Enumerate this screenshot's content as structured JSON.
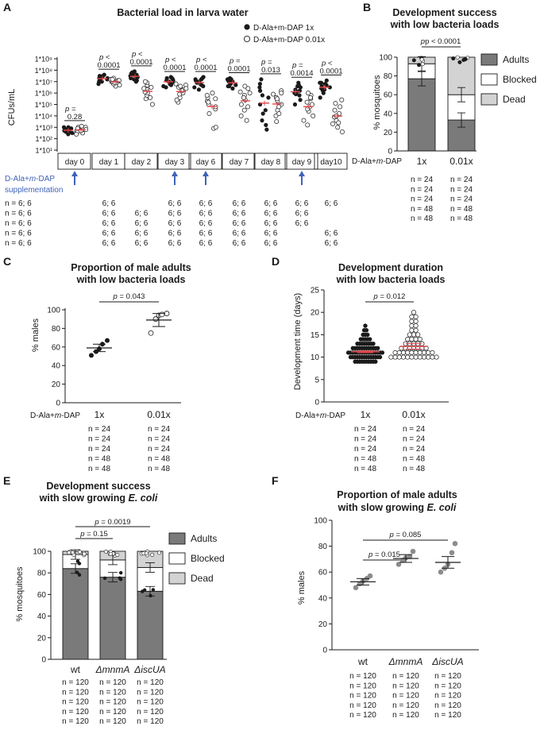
{
  "panels": {
    "A": "A",
    "B": "B",
    "C": "C",
    "D": "D",
    "E": "E",
    "F": "F"
  },
  "colors": {
    "dark": "#1a1a1a",
    "mid_gray": "#7a7a7a",
    "light_gray": "#d3d3d3",
    "red": "#e0454a",
    "blue": "#3f63b8",
    "point_gray": "#8c8c8c"
  },
  "panelA": {
    "title": "Bacterial load in larva water",
    "ylabel": "CFUs/mL",
    "yticks": [
      "1*10⁹",
      "1*10⁸",
      "1*10⁷",
      "1*10⁶",
      "1*10⁵",
      "1*10⁴",
      "1*10³",
      "1*10²",
      "1*10¹"
    ],
    "legend": [
      "D-Ala+m-DAP 1x",
      "D-Ala+m-DAP 0.01x"
    ],
    "supplementation": "D-Ala+m-DAP supplementation",
    "p_prefix": "p",
    "n_rows": [
      [
        "n = 6; 6",
        "6; 6",
        "",
        "6; 6",
        "6; 6",
        "6; 6",
        "6; 6",
        "6; 6",
        "6; 6"
      ],
      [
        "n = 6; 6",
        "6; 6",
        "6; 6",
        "6; 6",
        "6; 6",
        "6; 6",
        "6; 6",
        "6; 6",
        ""
      ],
      [
        "n = 6; 6",
        "6; 6",
        "6; 6",
        "6; 6",
        "6; 6",
        "6; 6",
        "6; 6",
        "6; 6",
        ""
      ],
      [
        "n = 6; 6",
        "6; 6",
        "6; 6",
        "6; 6",
        "6; 6",
        "6; 6",
        "6; 6",
        "",
        "6; 6"
      ],
      [
        "n = 6; 6",
        "6; 6",
        "6; 6",
        "6; 6",
        "6; 6",
        "6; 6",
        "6; 6",
        "",
        "6; 6"
      ]
    ]
  },
  "panelB": {
    "title1": "Development success",
    "title2": "with low bacteria loads",
    "ylabel": "% mosquitoes",
    "p": "p < 0.0001",
    "xlabel_row": "D-Ala+m-DAP",
    "legend": [
      "Adults",
      "Blocked",
      "Dead"
    ],
    "n": [
      "n = 24",
      "n = 24",
      "n = 24",
      "n = 48",
      "n = 48"
    ]
  },
  "panelC": {
    "title1": "Proportion of male adults",
    "title2": "with low bacteria loads",
    "ylabel": "% males",
    "p": "p = 0.043",
    "xlabel_row": "D-Ala+m-DAP",
    "n": [
      "n = 24",
      "n = 24",
      "n = 24",
      "n = 48",
      "n = 48"
    ]
  },
  "panelD": {
    "title1": "Development duration",
    "title2": "with low bacteria loads",
    "ylabel": "Development time (days)",
    "p": "p = 0.012",
    "xlabel_row": "D-Ala+m-DAP",
    "n": [
      "n = 24",
      "n = 24",
      "n = 24",
      "n = 48",
      "n = 48"
    ]
  },
  "panelE": {
    "title1": "Development success",
    "title2a": "with slow growing ",
    "title2b": "E. coli",
    "ylabel": "% mosquitoes",
    "p1": "p = 0.15",
    "p2": "p = 0.0019",
    "legend": [
      "Adults",
      "Blocked",
      "Dead"
    ],
    "n": [
      "n = 120",
      "n = 120",
      "n = 120",
      "n = 120",
      "n = 120"
    ]
  },
  "panelF": {
    "title1": "Proportion of male adults",
    "title2a": "with slow growing ",
    "title2b": "E. coli",
    "ylabel": "% males",
    "p1": "p = 0.015",
    "p2": "p = 0.085",
    "n": [
      "n = 120",
      "n = 120",
      "n = 120",
      "n = 120",
      "n = 120"
    ]
  },
  "chart_data": [
    {
      "panel": "A",
      "type": "scatter",
      "title": "Bacterial load in larva water",
      "ylabel": "CFUs/mL",
      "yscale": "log",
      "ylim": [
        10,
        1000000000
      ],
      "categories": [
        "day 0",
        "day 1",
        "day 2",
        "day 3",
        "day 6",
        "day 7",
        "day 8",
        "day 9",
        "day10"
      ],
      "series": [
        {
          "name": "D-Ala+m-DAP 1x",
          "log10_values": [
            [
              2.4,
              2.6,
              2.7,
              2.8,
              2.9,
              3.0,
              3.0,
              2.5,
              2.7,
              2.8,
              2.6,
              2.9
            ],
            [
              6.8,
              7.0,
              7.2,
              7.3,
              7.4,
              7.5,
              7.6,
              7.2,
              7.0,
              7.3,
              7.4,
              7.5
            ],
            [
              7.0,
              7.2,
              7.4,
              7.6,
              7.7,
              7.8,
              7.9,
              7.3,
              7.5,
              7.6,
              7.1,
              7.4
            ],
            [
              6.5,
              6.7,
              6.9,
              7.1,
              7.2,
              7.3,
              7.4,
              6.8,
              7.0,
              6.6,
              7.1,
              7.3
            ],
            [
              6.3,
              6.6,
              6.8,
              7.0,
              7.2,
              7.3,
              7.4,
              6.9,
              6.5,
              7.1,
              6.7,
              7.2
            ],
            [
              6.4,
              6.6,
              6.8,
              7.0,
              7.1,
              7.2,
              7.3,
              6.9,
              6.7,
              7.0,
              6.6,
              7.2
            ],
            [
              2.8,
              3.2,
              3.6,
              4.2,
              5.0,
              5.6,
              6.2,
              6.8,
              7.2,
              5.8,
              6.5,
              4.5
            ],
            [
              5.0,
              5.4,
              5.8,
              6.0,
              6.3,
              6.6,
              6.9,
              6.2,
              5.9,
              6.5,
              6.1,
              6.7
            ],
            [
              5.6,
              6.0,
              6.3,
              6.5,
              6.7,
              6.9,
              7.1,
              6.4,
              6.6,
              6.8,
              6.2,
              6.9
            ]
          ]
        },
        {
          "name": "D-Ala+m-DAP 0.01x",
          "log10_values": [
            [
              2.5,
              2.7,
              2.9,
              3.0,
              2.8,
              2.6,
              3.1,
              2.7,
              2.9,
              2.4,
              3.0,
              2.8
            ],
            [
              6.6,
              6.9,
              7.0,
              7.1,
              7.3,
              6.8,
              7.2,
              6.7,
              7.0,
              7.1,
              6.9,
              7.2
            ],
            [
              5.0,
              5.5,
              5.8,
              6.0,
              6.3,
              6.5,
              6.7,
              6.9,
              7.0,
              6.1,
              5.6,
              6.4
            ],
            [
              5.2,
              5.6,
              6.0,
              6.3,
              6.5,
              6.7,
              6.8,
              5.9,
              6.2,
              6.6,
              5.4,
              6.4
            ],
            [
              2.9,
              3.0,
              4.2,
              4.6,
              5.0,
              5.3,
              5.6,
              5.8,
              6.0,
              5.5,
              4.8,
              5.2
            ],
            [
              3.6,
              4.0,
              4.5,
              5.0,
              5.4,
              5.8,
              6.1,
              6.4,
              6.6,
              4.8,
              5.6,
              6.0
            ],
            [
              3.5,
              4.0,
              4.5,
              5.0,
              5.3,
              5.6,
              5.9,
              6.2,
              4.8,
              5.5,
              6.0,
              4.2
            ],
            [
              3.2,
              3.6,
              4.0,
              4.4,
              4.8,
              5.2,
              5.5,
              5.8,
              6.0,
              4.6,
              5.0,
              5.6
            ],
            [
              2.6,
              3.0,
              3.3,
              3.6,
              3.9,
              4.2,
              4.5,
              4.8,
              5.1,
              5.4,
              3.4,
              4.0
            ]
          ]
        }
      ],
      "p_values": [
        "= 0.28",
        "< 0.0001",
        "< 0.0001",
        "< 0.0001",
        "< 0.0001",
        "= 0.0001",
        "= 0.013",
        "= 0.0014",
        "< 0.0001"
      ],
      "supplementation_days": [
        "day 0",
        "day 3",
        "day 6",
        "day 9"
      ]
    },
    {
      "panel": "B",
      "type": "bar",
      "stacked": true,
      "title": "Development success with low bacteria loads",
      "ylabel": "% mosquitoes",
      "categories": [
        "1x",
        "0.01x"
      ],
      "ylim": [
        0,
        100
      ],
      "series": [
        {
          "name": "Adults",
          "values": [
            77,
            33
          ]
        },
        {
          "name": "Blocked",
          "values": [
            16,
            27
          ]
        },
        {
          "name": "Dead",
          "values": [
            7,
            40
          ]
        }
      ]
    },
    {
      "panel": "C",
      "type": "scatter",
      "title": "Proportion of male adults with low bacteria loads",
      "ylabel": "% males",
      "categories": [
        "1x",
        "0.01x"
      ],
      "ylim": [
        0,
        100
      ],
      "means": [
        59,
        89
      ],
      "sem": [
        4,
        7
      ],
      "points": [
        [
          51,
          55,
          58,
          63,
          67
        ],
        [
          75,
          90,
          94,
          95,
          96
        ]
      ]
    },
    {
      "panel": "D",
      "type": "scatter",
      "title": "Development duration with low bacteria loads",
      "ylabel": "Development time (days)",
      "categories": [
        "1x",
        "0.01x"
      ],
      "ylim": [
        0,
        25
      ],
      "means": [
        11.2,
        12.4
      ],
      "sem": [
        0.2,
        0.6
      ],
      "points": [
        [
          9,
          9,
          9,
          9,
          9,
          9,
          9,
          9,
          9,
          9,
          10,
          10,
          10,
          10,
          10,
          10,
          10,
          10,
          10,
          10,
          10,
          10,
          10,
          10,
          11,
          11,
          11,
          11,
          11,
          11,
          11,
          11,
          11,
          11,
          11,
          11,
          11,
          11,
          11,
          11,
          12,
          12,
          12,
          12,
          12,
          12,
          12,
          12,
          12,
          12,
          12,
          12,
          13,
          13,
          13,
          13,
          13,
          13,
          13,
          13,
          14,
          14,
          14,
          14,
          14,
          15,
          15,
          15,
          16,
          16,
          17
        ],
        [
          10,
          10,
          10,
          10,
          10,
          10,
          10,
          10,
          10,
          10,
          10,
          10,
          11,
          11,
          11,
          11,
          11,
          11,
          11,
          11,
          11,
          11,
          12,
          12,
          12,
          12,
          12,
          12,
          12,
          13,
          13,
          13,
          13,
          13,
          14,
          14,
          14,
          14,
          15,
          15,
          15,
          16,
          16,
          17,
          17,
          18,
          18,
          19,
          19,
          20
        ]
      ]
    },
    {
      "panel": "E",
      "type": "bar",
      "stacked": true,
      "title": "Development success with slow growing E. coli",
      "ylabel": "% mosquitoes",
      "categories": [
        "wt",
        "ΔmnmA",
        "ΔiscUA"
      ],
      "ylim": [
        0,
        100
      ],
      "series": [
        {
          "name": "Adults",
          "values": [
            84,
            76,
            63
          ]
        },
        {
          "name": "Blocked",
          "values": [
            13,
            16,
            22
          ]
        },
        {
          "name": "Dead",
          "values": [
            3,
            8,
            15
          ]
        }
      ]
    },
    {
      "panel": "F",
      "type": "scatter",
      "title": "Proportion of male adults with slow growing E. coli",
      "ylabel": "% males",
      "categories": [
        "wt",
        "ΔmnmA",
        "ΔiscUA"
      ],
      "ylim": [
        0,
        100
      ],
      "means": [
        52.5,
        70.5,
        67.5
      ],
      "sem": [
        2.5,
        3.0,
        4.5
      ],
      "points": [
        [
          48,
          51,
          53,
          55,
          57
        ],
        [
          66,
          69,
          71,
          72,
          76
        ],
        [
          60,
          63,
          66,
          75,
          82
        ]
      ]
    }
  ]
}
